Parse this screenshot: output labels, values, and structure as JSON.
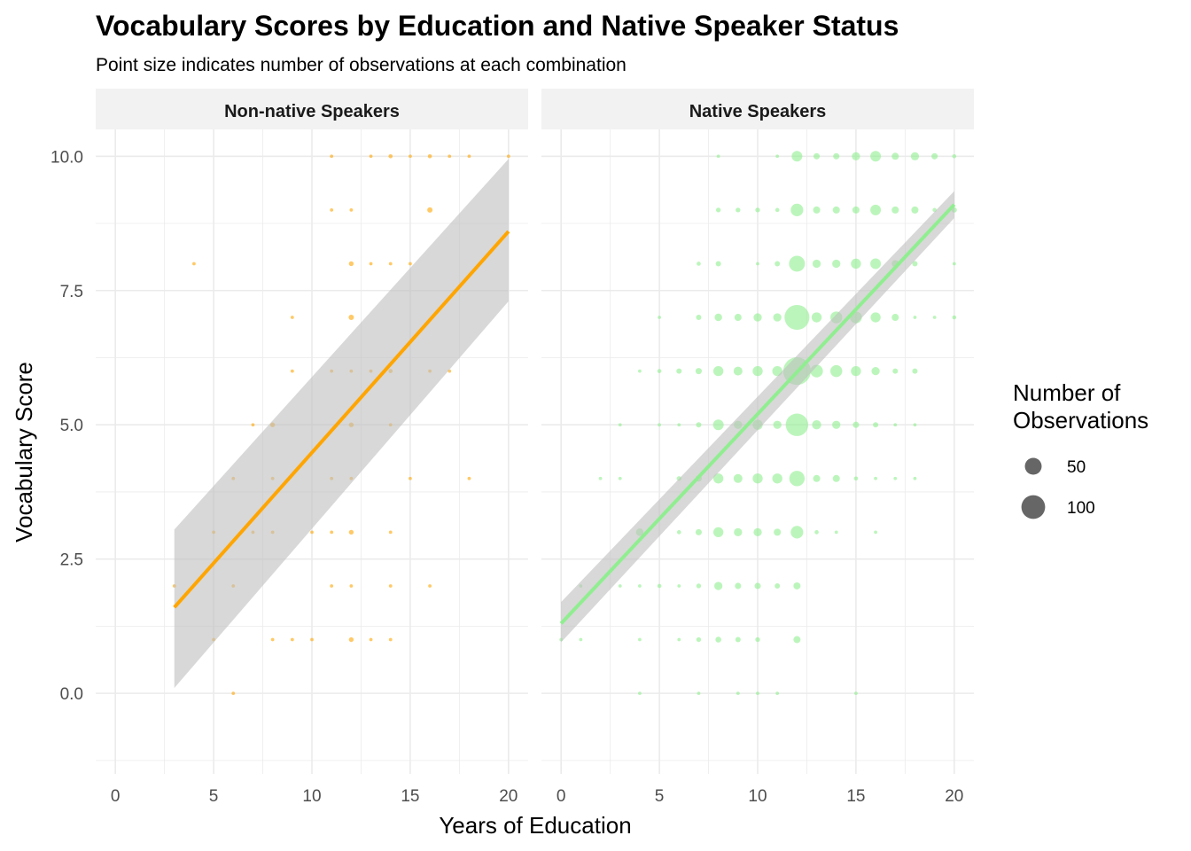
{
  "title": "Vocabulary Scores by Education and Native Speaker Status",
  "subtitle": "Point size indicates number of observations at each combination",
  "xlabel": "Years of Education",
  "ylabel": "Vocabulary Score",
  "legend": {
    "title_line1": "Number of",
    "title_line2": "Observations",
    "entries": [
      {
        "label": "50",
        "count": 50
      },
      {
        "label": "100",
        "count": 100
      }
    ]
  },
  "colors": {
    "non_native": "#FFA500",
    "native": "#90EE90",
    "ribbon": "#BEBEBE",
    "strip_bg": "#F2F2F2",
    "grid": "#EBEBEB"
  },
  "chart_data": {
    "type": "scatter",
    "xlim": [
      -1,
      21
    ],
    "ylim": [
      -1.5,
      10.5
    ],
    "x_ticks": [
      0,
      5,
      10,
      15,
      20
    ],
    "y_ticks": [
      0.0,
      2.5,
      5.0,
      7.5,
      10.0
    ],
    "y_tick_labels": [
      "0.0",
      "2.5",
      "5.0",
      "7.5",
      "10.0"
    ],
    "panels": [
      {
        "name": "Non-native Speakers",
        "color": "#FFA500",
        "fit": {
          "x": [
            3,
            20
          ],
          "y": [
            1.6,
            8.6
          ],
          "lower": [
            0.1,
            7.3
          ],
          "upper": [
            3.05,
            9.95
          ]
        },
        "points": [
          [
            3,
            2,
            2
          ],
          [
            4,
            8,
            2
          ],
          [
            5,
            3,
            2
          ],
          [
            5,
            1,
            2
          ],
          [
            6,
            4,
            2
          ],
          [
            6,
            2,
            2
          ],
          [
            6,
            0,
            2
          ],
          [
            7,
            5,
            2
          ],
          [
            7,
            3,
            2
          ],
          [
            8,
            5,
            4
          ],
          [
            8,
            4,
            2
          ],
          [
            8,
            3,
            2
          ],
          [
            8,
            1,
            2
          ],
          [
            9,
            7,
            2
          ],
          [
            9,
            6,
            2
          ],
          [
            9,
            1,
            2
          ],
          [
            10,
            3,
            2
          ],
          [
            10,
            1,
            2
          ],
          [
            11,
            10,
            2
          ],
          [
            11,
            9,
            2
          ],
          [
            11,
            6,
            2
          ],
          [
            11,
            4,
            2
          ],
          [
            11,
            3,
            2
          ],
          [
            11,
            2,
            2
          ],
          [
            12,
            9,
            2
          ],
          [
            12,
            8,
            4
          ],
          [
            12,
            7,
            5
          ],
          [
            12,
            6,
            2
          ],
          [
            12,
            5,
            4
          ],
          [
            12,
            4,
            2
          ],
          [
            12,
            3,
            4
          ],
          [
            12,
            2,
            2
          ],
          [
            12,
            1,
            4
          ],
          [
            13,
            10,
            2
          ],
          [
            13,
            8,
            2
          ],
          [
            13,
            6,
            2
          ],
          [
            13,
            1,
            2
          ],
          [
            14,
            10,
            3
          ],
          [
            14,
            8,
            2
          ],
          [
            14,
            6,
            3
          ],
          [
            14,
            5,
            2
          ],
          [
            14,
            3,
            2
          ],
          [
            14,
            2,
            2
          ],
          [
            14,
            1,
            2
          ],
          [
            15,
            10,
            2
          ],
          [
            15,
            8,
            2
          ],
          [
            15,
            4,
            2
          ],
          [
            16,
            10,
            3
          ],
          [
            16,
            9,
            5
          ],
          [
            16,
            6,
            2
          ],
          [
            16,
            2,
            2
          ],
          [
            17,
            10,
            2
          ],
          [
            17,
            6,
            2
          ],
          [
            18,
            10,
            2
          ],
          [
            18,
            4,
            2
          ],
          [
            20,
            10,
            2
          ]
        ]
      },
      {
        "name": "Native Speakers",
        "color": "#90EE90",
        "fit": {
          "x": [
            0,
            20
          ],
          "y": [
            1.3,
            9.1
          ],
          "lower": [
            0.95,
            8.85
          ],
          "upper": [
            1.7,
            9.35
          ]
        },
        "points": [
          [
            0,
            1,
            2
          ],
          [
            1,
            2,
            2
          ],
          [
            1,
            1,
            2
          ],
          [
            2,
            4,
            2
          ],
          [
            3,
            5,
            2
          ],
          [
            3,
            4,
            2
          ],
          [
            3,
            2,
            2
          ],
          [
            4,
            6,
            2
          ],
          [
            4,
            3,
            10
          ],
          [
            4,
            2,
            2
          ],
          [
            4,
            1,
            2
          ],
          [
            4,
            0,
            2
          ],
          [
            5,
            7,
            2
          ],
          [
            5,
            6,
            3
          ],
          [
            5,
            5,
            2
          ],
          [
            5,
            2,
            3
          ],
          [
            6,
            6,
            5
          ],
          [
            6,
            5,
            2
          ],
          [
            6,
            4,
            4
          ],
          [
            6,
            3,
            3
          ],
          [
            6,
            2,
            2
          ],
          [
            6,
            1,
            2
          ],
          [
            7,
            8,
            3
          ],
          [
            7,
            7,
            5
          ],
          [
            7,
            6,
            7
          ],
          [
            7,
            5,
            5
          ],
          [
            7,
            4,
            7
          ],
          [
            7,
            3,
            7
          ],
          [
            7,
            2,
            4
          ],
          [
            7,
            1,
            4
          ],
          [
            7,
            0,
            2
          ],
          [
            8,
            10,
            2
          ],
          [
            8,
            9,
            4
          ],
          [
            8,
            8,
            5
          ],
          [
            8,
            7,
            10
          ],
          [
            8,
            6,
            18
          ],
          [
            8,
            5,
            20
          ],
          [
            8,
            4,
            18
          ],
          [
            8,
            3,
            18
          ],
          [
            8,
            2,
            12
          ],
          [
            8,
            1,
            6
          ],
          [
            9,
            9,
            4
          ],
          [
            9,
            7,
            9
          ],
          [
            9,
            6,
            14
          ],
          [
            9,
            5,
            12
          ],
          [
            9,
            4,
            14
          ],
          [
            9,
            3,
            12
          ],
          [
            9,
            2,
            7
          ],
          [
            9,
            1,
            5
          ],
          [
            9,
            0,
            2
          ],
          [
            10,
            9,
            4
          ],
          [
            10,
            8,
            2
          ],
          [
            10,
            7,
            12
          ],
          [
            10,
            6,
            18
          ],
          [
            10,
            5,
            18
          ],
          [
            10,
            4,
            18
          ],
          [
            10,
            3,
            12
          ],
          [
            10,
            2,
            7
          ],
          [
            10,
            1,
            4
          ],
          [
            10,
            0,
            2
          ],
          [
            11,
            10,
            2
          ],
          [
            11,
            9,
            3
          ],
          [
            11,
            8,
            5
          ],
          [
            11,
            7,
            12
          ],
          [
            11,
            6,
            18
          ],
          [
            11,
            5,
            12
          ],
          [
            11,
            4,
            18
          ],
          [
            11,
            3,
            9
          ],
          [
            11,
            2,
            5
          ],
          [
            11,
            0,
            2
          ],
          [
            12,
            10,
            20
          ],
          [
            12,
            9,
            28
          ],
          [
            12,
            8,
            45
          ],
          [
            12,
            7,
            110
          ],
          [
            12,
            6,
            135
          ],
          [
            12,
            5,
            90
          ],
          [
            12,
            4,
            42
          ],
          [
            12,
            3,
            28
          ],
          [
            12,
            2,
            9
          ],
          [
            12,
            1,
            9
          ],
          [
            13,
            10,
            7
          ],
          [
            13,
            9,
            9
          ],
          [
            13,
            8,
            12
          ],
          [
            13,
            7,
            18
          ],
          [
            13,
            6,
            28
          ],
          [
            13,
            5,
            15
          ],
          [
            13,
            4,
            9
          ],
          [
            13,
            3,
            3
          ],
          [
            14,
            10,
            7
          ],
          [
            14,
            9,
            9
          ],
          [
            14,
            8,
            12
          ],
          [
            14,
            7,
            25
          ],
          [
            14,
            6,
            25
          ],
          [
            14,
            5,
            12
          ],
          [
            14,
            4,
            9
          ],
          [
            14,
            3,
            2
          ],
          [
            15,
            10,
            12
          ],
          [
            15,
            9,
            9
          ],
          [
            15,
            8,
            18
          ],
          [
            15,
            7,
            25
          ],
          [
            15,
            6,
            18
          ],
          [
            15,
            5,
            7
          ],
          [
            15,
            4,
            3
          ],
          [
            15,
            0,
            2
          ],
          [
            16,
            10,
            20
          ],
          [
            16,
            9,
            20
          ],
          [
            16,
            8,
            20
          ],
          [
            16,
            7,
            18
          ],
          [
            16,
            6,
            12
          ],
          [
            16,
            5,
            5
          ],
          [
            16,
            4,
            2
          ],
          [
            16,
            3,
            2
          ],
          [
            17,
            10,
            9
          ],
          [
            17,
            9,
            9
          ],
          [
            17,
            8,
            9
          ],
          [
            17,
            7,
            9
          ],
          [
            17,
            6,
            5
          ],
          [
            17,
            5,
            2
          ],
          [
            17,
            4,
            2
          ],
          [
            18,
            10,
            12
          ],
          [
            18,
            9,
            9
          ],
          [
            18,
            8,
            5
          ],
          [
            18,
            7,
            2
          ],
          [
            18,
            6,
            5
          ],
          [
            18,
            5,
            2
          ],
          [
            18,
            4,
            2
          ],
          [
            19,
            10,
            7
          ],
          [
            19,
            9,
            3
          ],
          [
            19,
            7,
            2
          ],
          [
            20,
            10,
            3
          ],
          [
            20,
            9,
            5
          ],
          [
            20,
            8,
            2
          ],
          [
            20,
            7,
            3
          ]
        ]
      }
    ]
  }
}
